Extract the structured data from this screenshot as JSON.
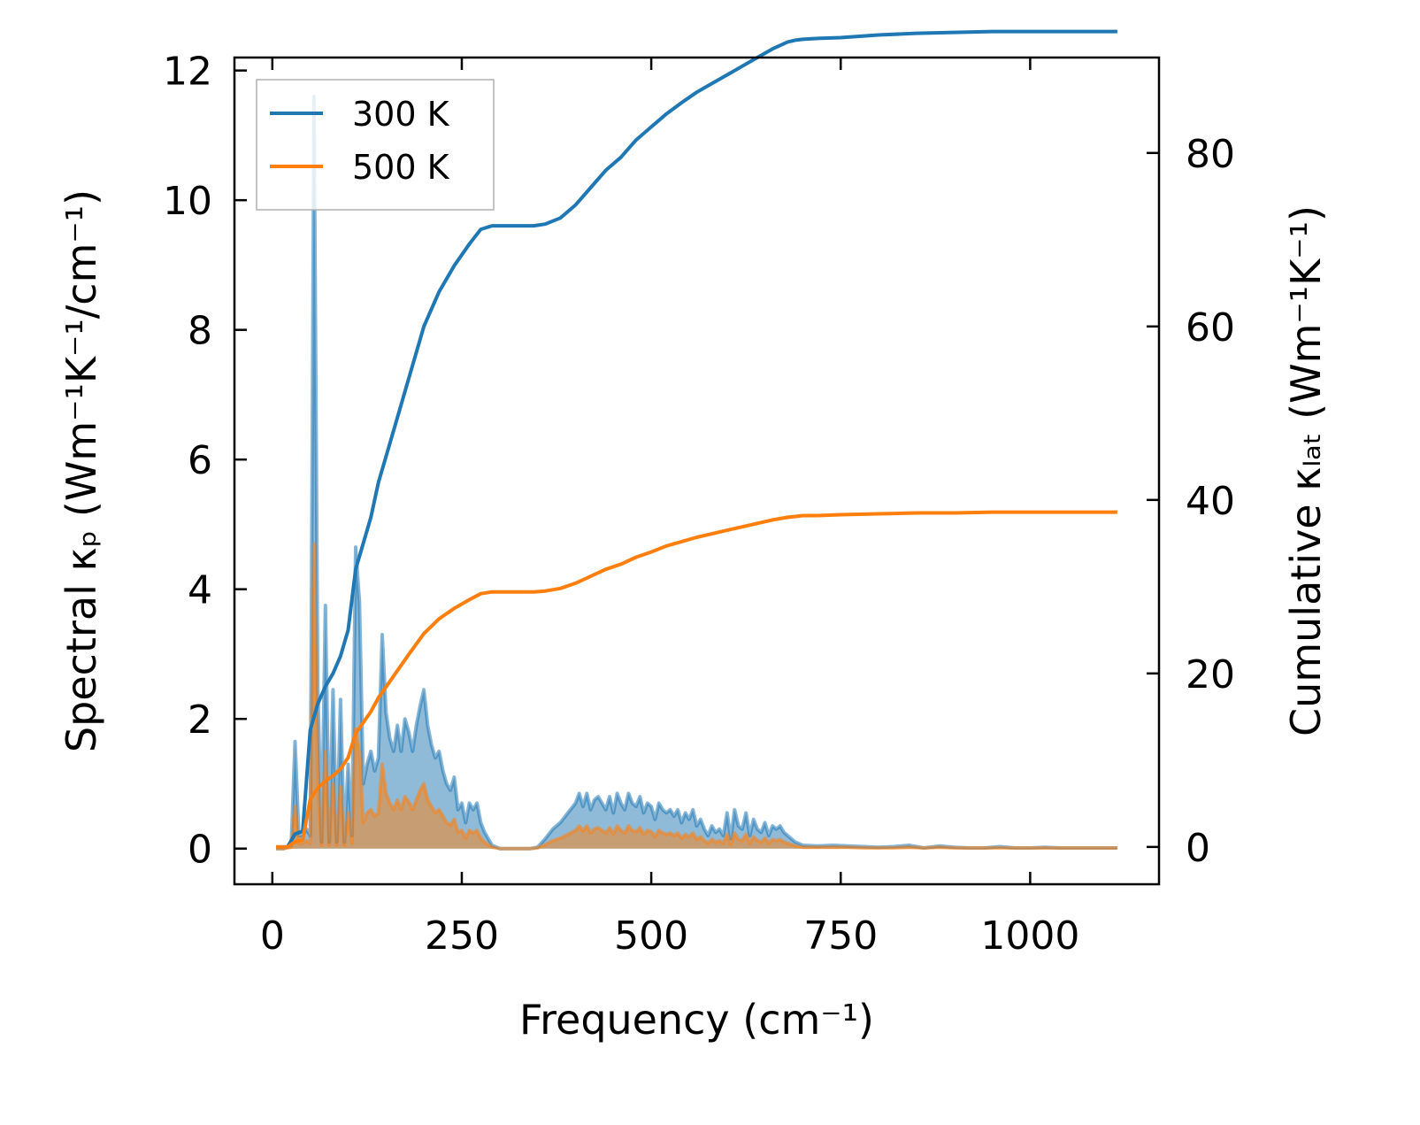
{
  "chart_data": {
    "type": "line",
    "xlabel": "Frequency (cm⁻¹)",
    "ylabel_left": "Spectral κₚ (Wm⁻¹K⁻¹/cm⁻¹)",
    "ylabel_right": "Cumulative κₗₐₜ (Wm⁻¹K⁻¹)",
    "xlim": [
      -50,
      1170
    ],
    "ylim_left": [
      -0.55,
      12.2
    ],
    "ylim_right": [
      -4.3,
      91
    ],
    "x_ticks": [
      0,
      250,
      500,
      750,
      1000
    ],
    "y_left_ticks": [
      0,
      2,
      4,
      6,
      8,
      10,
      12
    ],
    "y_right_ticks": [
      0,
      20,
      40,
      60,
      80
    ],
    "grid": false,
    "legend": {
      "placement": "top-left",
      "entries": [
        "300 K",
        "500 K"
      ]
    },
    "series": [
      {
        "name": "300 K",
        "color": "#1f77b4",
        "spectral": {
          "x": [
            5,
            15,
            25,
            30,
            35,
            40,
            45,
            50,
            55,
            60,
            65,
            70,
            75,
            80,
            85,
            90,
            95,
            100,
            105,
            110,
            115,
            120,
            125,
            130,
            135,
            140,
            145,
            150,
            155,
            160,
            165,
            170,
            175,
            180,
            185,
            190,
            195,
            200,
            205,
            210,
            215,
            220,
            225,
            230,
            235,
            240,
            245,
            250,
            255,
            260,
            265,
            270,
            275,
            280,
            290,
            300,
            320,
            340,
            350,
            360,
            370,
            380,
            390,
            400,
            405,
            410,
            415,
            420,
            425,
            430,
            435,
            440,
            445,
            450,
            455,
            460,
            465,
            470,
            475,
            480,
            485,
            490,
            495,
            500,
            505,
            510,
            515,
            520,
            525,
            530,
            535,
            540,
            545,
            550,
            555,
            560,
            565,
            570,
            575,
            580,
            585,
            590,
            595,
            600,
            605,
            610,
            615,
            620,
            625,
            630,
            635,
            640,
            645,
            650,
            655,
            660,
            665,
            670,
            675,
            680,
            690,
            700,
            720,
            740,
            760,
            780,
            800,
            820,
            840,
            860,
            880,
            900,
            920,
            940,
            960,
            980,
            1000,
            1020,
            1040,
            1060,
            1080,
            1100,
            1115
          ],
          "y": [
            0,
            0,
            0.05,
            1.65,
            0.2,
            0.2,
            0.3,
            0.2,
            11.6,
            2.5,
            0.1,
            3.75,
            0.1,
            2.45,
            0.1,
            2.3,
            0.1,
            1.3,
            0.2,
            4.65,
            3.8,
            1.0,
            1.3,
            1.5,
            1.2,
            1.4,
            3.3,
            2.1,
            1.7,
            1.5,
            1.9,
            1.5,
            2.0,
            1.8,
            1.5,
            1.9,
            2.2,
            2.45,
            1.9,
            1.6,
            1.4,
            1.5,
            1.2,
            1.0,
            0.9,
            1.1,
            0.6,
            0.7,
            0.4,
            0.7,
            0.6,
            0.7,
            0.4,
            0.25,
            0.05,
            0,
            0,
            0,
            0.02,
            0.15,
            0.3,
            0.4,
            0.55,
            0.7,
            0.85,
            0.65,
            0.85,
            0.6,
            0.75,
            0.8,
            0.7,
            0.6,
            0.8,
            0.55,
            0.85,
            0.7,
            0.6,
            0.85,
            0.7,
            0.65,
            0.8,
            0.55,
            0.7,
            0.65,
            0.45,
            0.7,
            0.6,
            0.55,
            0.6,
            0.5,
            0.6,
            0.4,
            0.55,
            0.45,
            0.6,
            0.35,
            0.45,
            0.3,
            0.2,
            0.35,
            0.25,
            0.3,
            0.2,
            0.55,
            0.15,
            0.6,
            0.35,
            0.3,
            0.55,
            0.2,
            0.45,
            0.3,
            0.25,
            0.4,
            0.2,
            0.35,
            0.3,
            0.35,
            0.25,
            0.2,
            0.1,
            0.05,
            0.04,
            0.05,
            0.04,
            0.03,
            0.02,
            0.03,
            0.05,
            0.01,
            0.04,
            0.02,
            0.01,
            0.01,
            0.03,
            0.01,
            0.01,
            0.02,
            0.01,
            0.01,
            0.01,
            0.01,
            0.01
          ]
        },
        "cumulative": {
          "x": [
            5,
            20,
            30,
            40,
            50,
            60,
            70,
            80,
            90,
            100,
            110,
            130,
            140,
            160,
            180,
            200,
            220,
            240,
            260,
            275,
            290,
            310,
            330,
            345,
            360,
            380,
            400,
            420,
            440,
            460,
            480,
            500,
            520,
            540,
            560,
            580,
            600,
            620,
            640,
            660,
            680,
            690,
            700,
            720,
            750,
            800,
            850,
            900,
            950,
            1000,
            1050,
            1115
          ],
          "y": [
            0,
            0,
            1.5,
            1.8,
            13.5,
            16.5,
            18.5,
            20,
            22,
            25,
            32,
            38,
            42,
            48,
            54,
            60,
            64,
            67,
            69.5,
            71.2,
            71.6,
            71.6,
            71.6,
            71.6,
            71.8,
            72.5,
            74,
            76,
            78,
            79.5,
            81.5,
            83,
            84.5,
            85.8,
            87,
            88,
            89,
            90,
            91,
            92,
            92.8,
            93,
            93.1,
            93.2,
            93.3,
            93.6,
            93.8,
            93.9,
            94.0,
            94.0,
            94.0,
            94.0
          ]
        }
      },
      {
        "name": "500 K",
        "color": "#ff7f0e",
        "spectral": {
          "x": [
            5,
            15,
            25,
            30,
            35,
            40,
            45,
            50,
            55,
            60,
            65,
            70,
            75,
            80,
            85,
            90,
            95,
            100,
            105,
            110,
            115,
            120,
            125,
            130,
            135,
            140,
            145,
            150,
            155,
            160,
            165,
            170,
            175,
            180,
            185,
            190,
            195,
            200,
            205,
            210,
            215,
            220,
            225,
            230,
            235,
            240,
            245,
            250,
            255,
            260,
            265,
            270,
            275,
            280,
            290,
            300,
            320,
            340,
            350,
            360,
            370,
            380,
            390,
            400,
            405,
            410,
            415,
            420,
            425,
            430,
            435,
            440,
            445,
            450,
            455,
            460,
            465,
            470,
            475,
            480,
            485,
            490,
            495,
            500,
            505,
            510,
            515,
            520,
            525,
            530,
            535,
            540,
            545,
            550,
            555,
            560,
            565,
            570,
            575,
            580,
            585,
            590,
            595,
            600,
            605,
            610,
            615,
            620,
            625,
            630,
            635,
            640,
            645,
            650,
            655,
            660,
            665,
            670,
            675,
            680,
            690,
            700,
            720,
            740,
            760,
            780,
            800,
            820,
            840,
            860,
            880,
            900,
            920,
            940,
            960,
            980,
            1000,
            1020,
            1040,
            1060,
            1080,
            1100,
            1115
          ],
          "y": [
            0,
            0,
            0.02,
            0.65,
            0.08,
            0.08,
            0.12,
            0.08,
            4.7,
            1.0,
            0.05,
            1.5,
            0.05,
            1.0,
            0.05,
            0.95,
            0.05,
            0.55,
            0.08,
            1.85,
            1.5,
            0.4,
            0.55,
            0.6,
            0.5,
            0.55,
            1.3,
            0.85,
            0.7,
            0.6,
            0.75,
            0.6,
            0.8,
            0.72,
            0.6,
            0.75,
            0.9,
            1.0,
            0.75,
            0.65,
            0.55,
            0.6,
            0.5,
            0.4,
            0.36,
            0.45,
            0.25,
            0.28,
            0.16,
            0.28,
            0.24,
            0.28,
            0.16,
            0.1,
            0.02,
            0,
            0,
            0,
            0.01,
            0.06,
            0.12,
            0.16,
            0.22,
            0.28,
            0.35,
            0.27,
            0.35,
            0.24,
            0.3,
            0.32,
            0.28,
            0.24,
            0.32,
            0.22,
            0.35,
            0.28,
            0.24,
            0.35,
            0.28,
            0.26,
            0.32,
            0.22,
            0.28,
            0.26,
            0.18,
            0.28,
            0.24,
            0.22,
            0.24,
            0.2,
            0.24,
            0.16,
            0.22,
            0.18,
            0.24,
            0.14,
            0.18,
            0.12,
            0.08,
            0.14,
            0.1,
            0.12,
            0.08,
            0.22,
            0.06,
            0.24,
            0.14,
            0.12,
            0.22,
            0.08,
            0.18,
            0.12,
            0.1,
            0.16,
            0.08,
            0.14,
            0.12,
            0.14,
            0.1,
            0.08,
            0.04,
            0.02,
            0.02,
            0.02,
            0.02,
            0.01,
            0.01,
            0.01,
            0.02,
            0.01,
            0.02,
            0.01,
            0.01,
            0.01,
            0.01,
            0.01,
            0.01,
            0.01,
            0.01,
            0.01,
            0.01,
            0.01,
            0.01
          ]
        },
        "cumulative": {
          "x": [
            5,
            20,
            30,
            40,
            50,
            60,
            70,
            80,
            90,
            100,
            110,
            130,
            140,
            160,
            180,
            200,
            220,
            240,
            260,
            275,
            290,
            310,
            330,
            345,
            360,
            380,
            400,
            420,
            440,
            460,
            480,
            500,
            520,
            540,
            560,
            580,
            600,
            620,
            640,
            660,
            680,
            690,
            700,
            720,
            750,
            800,
            850,
            900,
            950,
            1000,
            1050,
            1115
          ],
          "y": [
            0,
            0,
            0.6,
            0.8,
            5.5,
            6.8,
            7.6,
            8.2,
            9.0,
            10.3,
            13.1,
            15.6,
            17.2,
            19.7,
            22.2,
            24.6,
            26.3,
            27.5,
            28.5,
            29.2,
            29.4,
            29.4,
            29.4,
            29.4,
            29.5,
            29.8,
            30.4,
            31.2,
            32.0,
            32.6,
            33.4,
            34.0,
            34.7,
            35.2,
            35.7,
            36.1,
            36.5,
            36.9,
            37.3,
            37.7,
            38.0,
            38.1,
            38.2,
            38.2,
            38.3,
            38.4,
            38.5,
            38.5,
            38.6,
            38.6,
            38.6,
            38.6
          ]
        }
      }
    ]
  }
}
